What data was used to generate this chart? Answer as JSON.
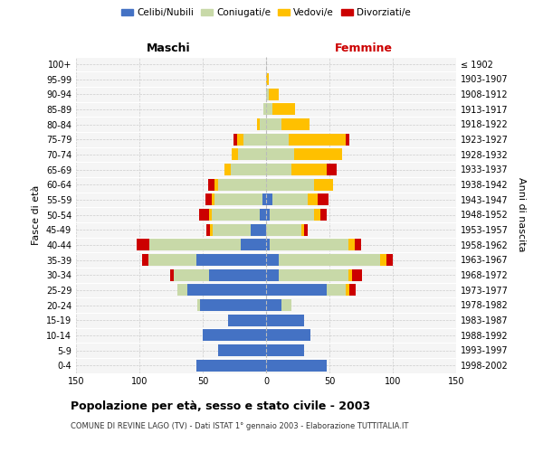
{
  "age_groups": [
    "0-4",
    "5-9",
    "10-14",
    "15-19",
    "20-24",
    "25-29",
    "30-34",
    "35-39",
    "40-44",
    "45-49",
    "50-54",
    "55-59",
    "60-64",
    "65-69",
    "70-74",
    "75-79",
    "80-84",
    "85-89",
    "90-94",
    "95-99",
    "100+"
  ],
  "birth_years": [
    "1998-2002",
    "1993-1997",
    "1988-1992",
    "1983-1987",
    "1978-1982",
    "1973-1977",
    "1968-1972",
    "1963-1967",
    "1958-1962",
    "1953-1957",
    "1948-1952",
    "1943-1947",
    "1938-1942",
    "1933-1937",
    "1928-1932",
    "1923-1927",
    "1918-1922",
    "1913-1917",
    "1908-1912",
    "1903-1907",
    "≤ 1902"
  ],
  "male": {
    "celibi": [
      55,
      38,
      50,
      30,
      52,
      62,
      45,
      55,
      20,
      12,
      5,
      3,
      0,
      0,
      0,
      0,
      0,
      0,
      0,
      0,
      0
    ],
    "coniugati": [
      0,
      0,
      0,
      0,
      2,
      8,
      28,
      38,
      72,
      30,
      38,
      38,
      38,
      28,
      22,
      18,
      5,
      2,
      0,
      0,
      0
    ],
    "vedovi": [
      0,
      0,
      0,
      0,
      0,
      0,
      0,
      0,
      0,
      2,
      2,
      2,
      3,
      5,
      5,
      5,
      2,
      0,
      0,
      0,
      0
    ],
    "divorziati": [
      0,
      0,
      0,
      0,
      0,
      0,
      3,
      5,
      10,
      3,
      8,
      5,
      5,
      0,
      0,
      3,
      0,
      0,
      0,
      0,
      0
    ]
  },
  "female": {
    "nubili": [
      48,
      30,
      35,
      30,
      12,
      48,
      10,
      10,
      3,
      0,
      3,
      5,
      0,
      0,
      0,
      0,
      0,
      0,
      0,
      0,
      0
    ],
    "coniugate": [
      0,
      0,
      0,
      0,
      8,
      15,
      55,
      80,
      62,
      28,
      35,
      28,
      38,
      20,
      22,
      18,
      12,
      5,
      2,
      0,
      0
    ],
    "vedove": [
      0,
      0,
      0,
      0,
      0,
      3,
      3,
      5,
      5,
      2,
      5,
      8,
      15,
      28,
      38,
      45,
      22,
      18,
      8,
      2,
      0
    ],
    "divorziate": [
      0,
      0,
      0,
      0,
      0,
      5,
      8,
      5,
      5,
      3,
      5,
      8,
      0,
      8,
      0,
      3,
      0,
      0,
      0,
      0,
      0
    ]
  },
  "colors": {
    "celibi": "#4472c4",
    "coniugati": "#c8d9a8",
    "vedovi": "#ffc000",
    "divorziati": "#cc0000"
  },
  "xlim": 150,
  "title": "Popolazione per età, sesso e stato civile - 2003",
  "subtitle": "COMUNE DI REVINE LAGO (TV) - Dati ISTAT 1° gennaio 2003 - Elaborazione TUTTITALIA.IT",
  "ylabel_left": "Fasce di età",
  "ylabel_right": "Anni di nascita",
  "header_left": "Maschi",
  "header_right": "Femmine"
}
